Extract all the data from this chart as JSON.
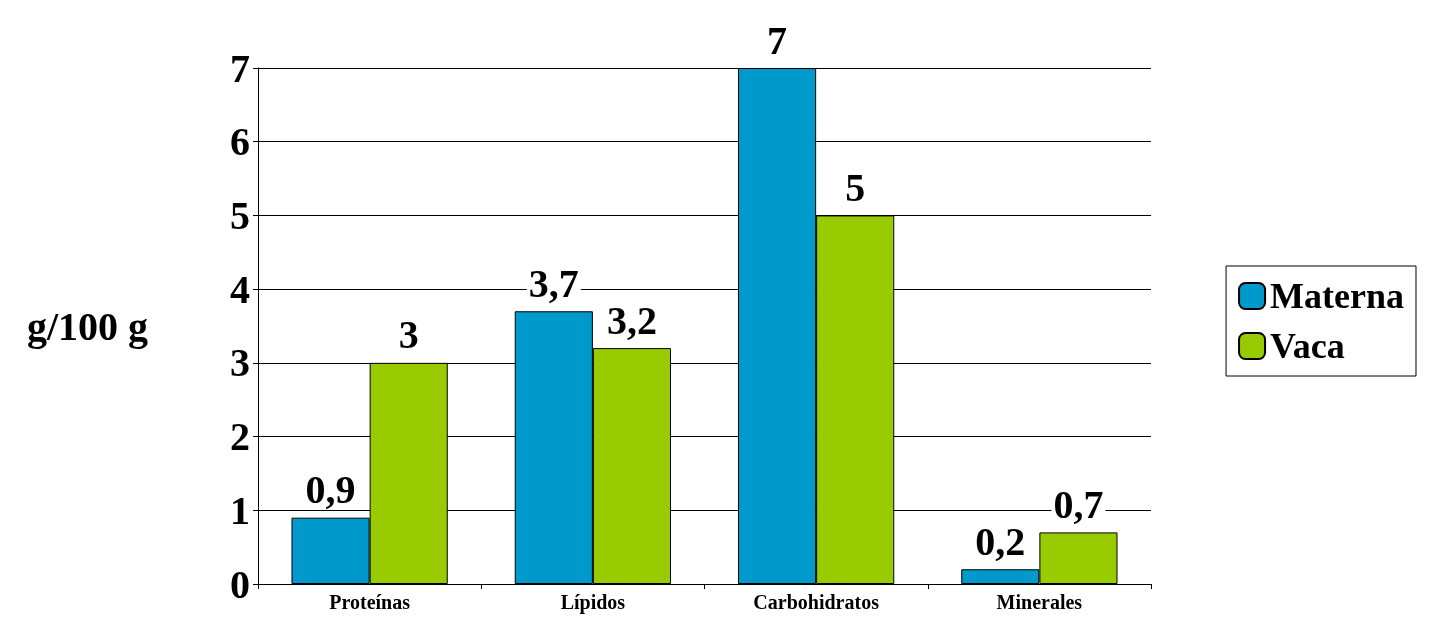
{
  "chart_data": {
    "type": "bar",
    "ylabel": "g/100 g",
    "categories": [
      "Proteínas",
      "Lípidos",
      "Carbohidratos",
      "Minerales"
    ],
    "series": [
      {
        "name": "Materna",
        "color": "#0099cc",
        "values": [
          0.9,
          3.7,
          7,
          0.2
        ],
        "value_labels": [
          "0,9",
          "3,7",
          "7",
          "0,2"
        ]
      },
      {
        "name": "Vaca",
        "color": "#99cc00",
        "values": [
          3,
          3.2,
          5,
          0.7
        ],
        "value_labels": [
          "3",
          "3,2",
          "5",
          "0,7"
        ]
      }
    ],
    "ylim": [
      0,
      7
    ],
    "yticks": [
      0,
      1,
      2,
      3,
      4,
      5,
      6,
      7
    ],
    "grid": "y",
    "legend": "right"
  }
}
